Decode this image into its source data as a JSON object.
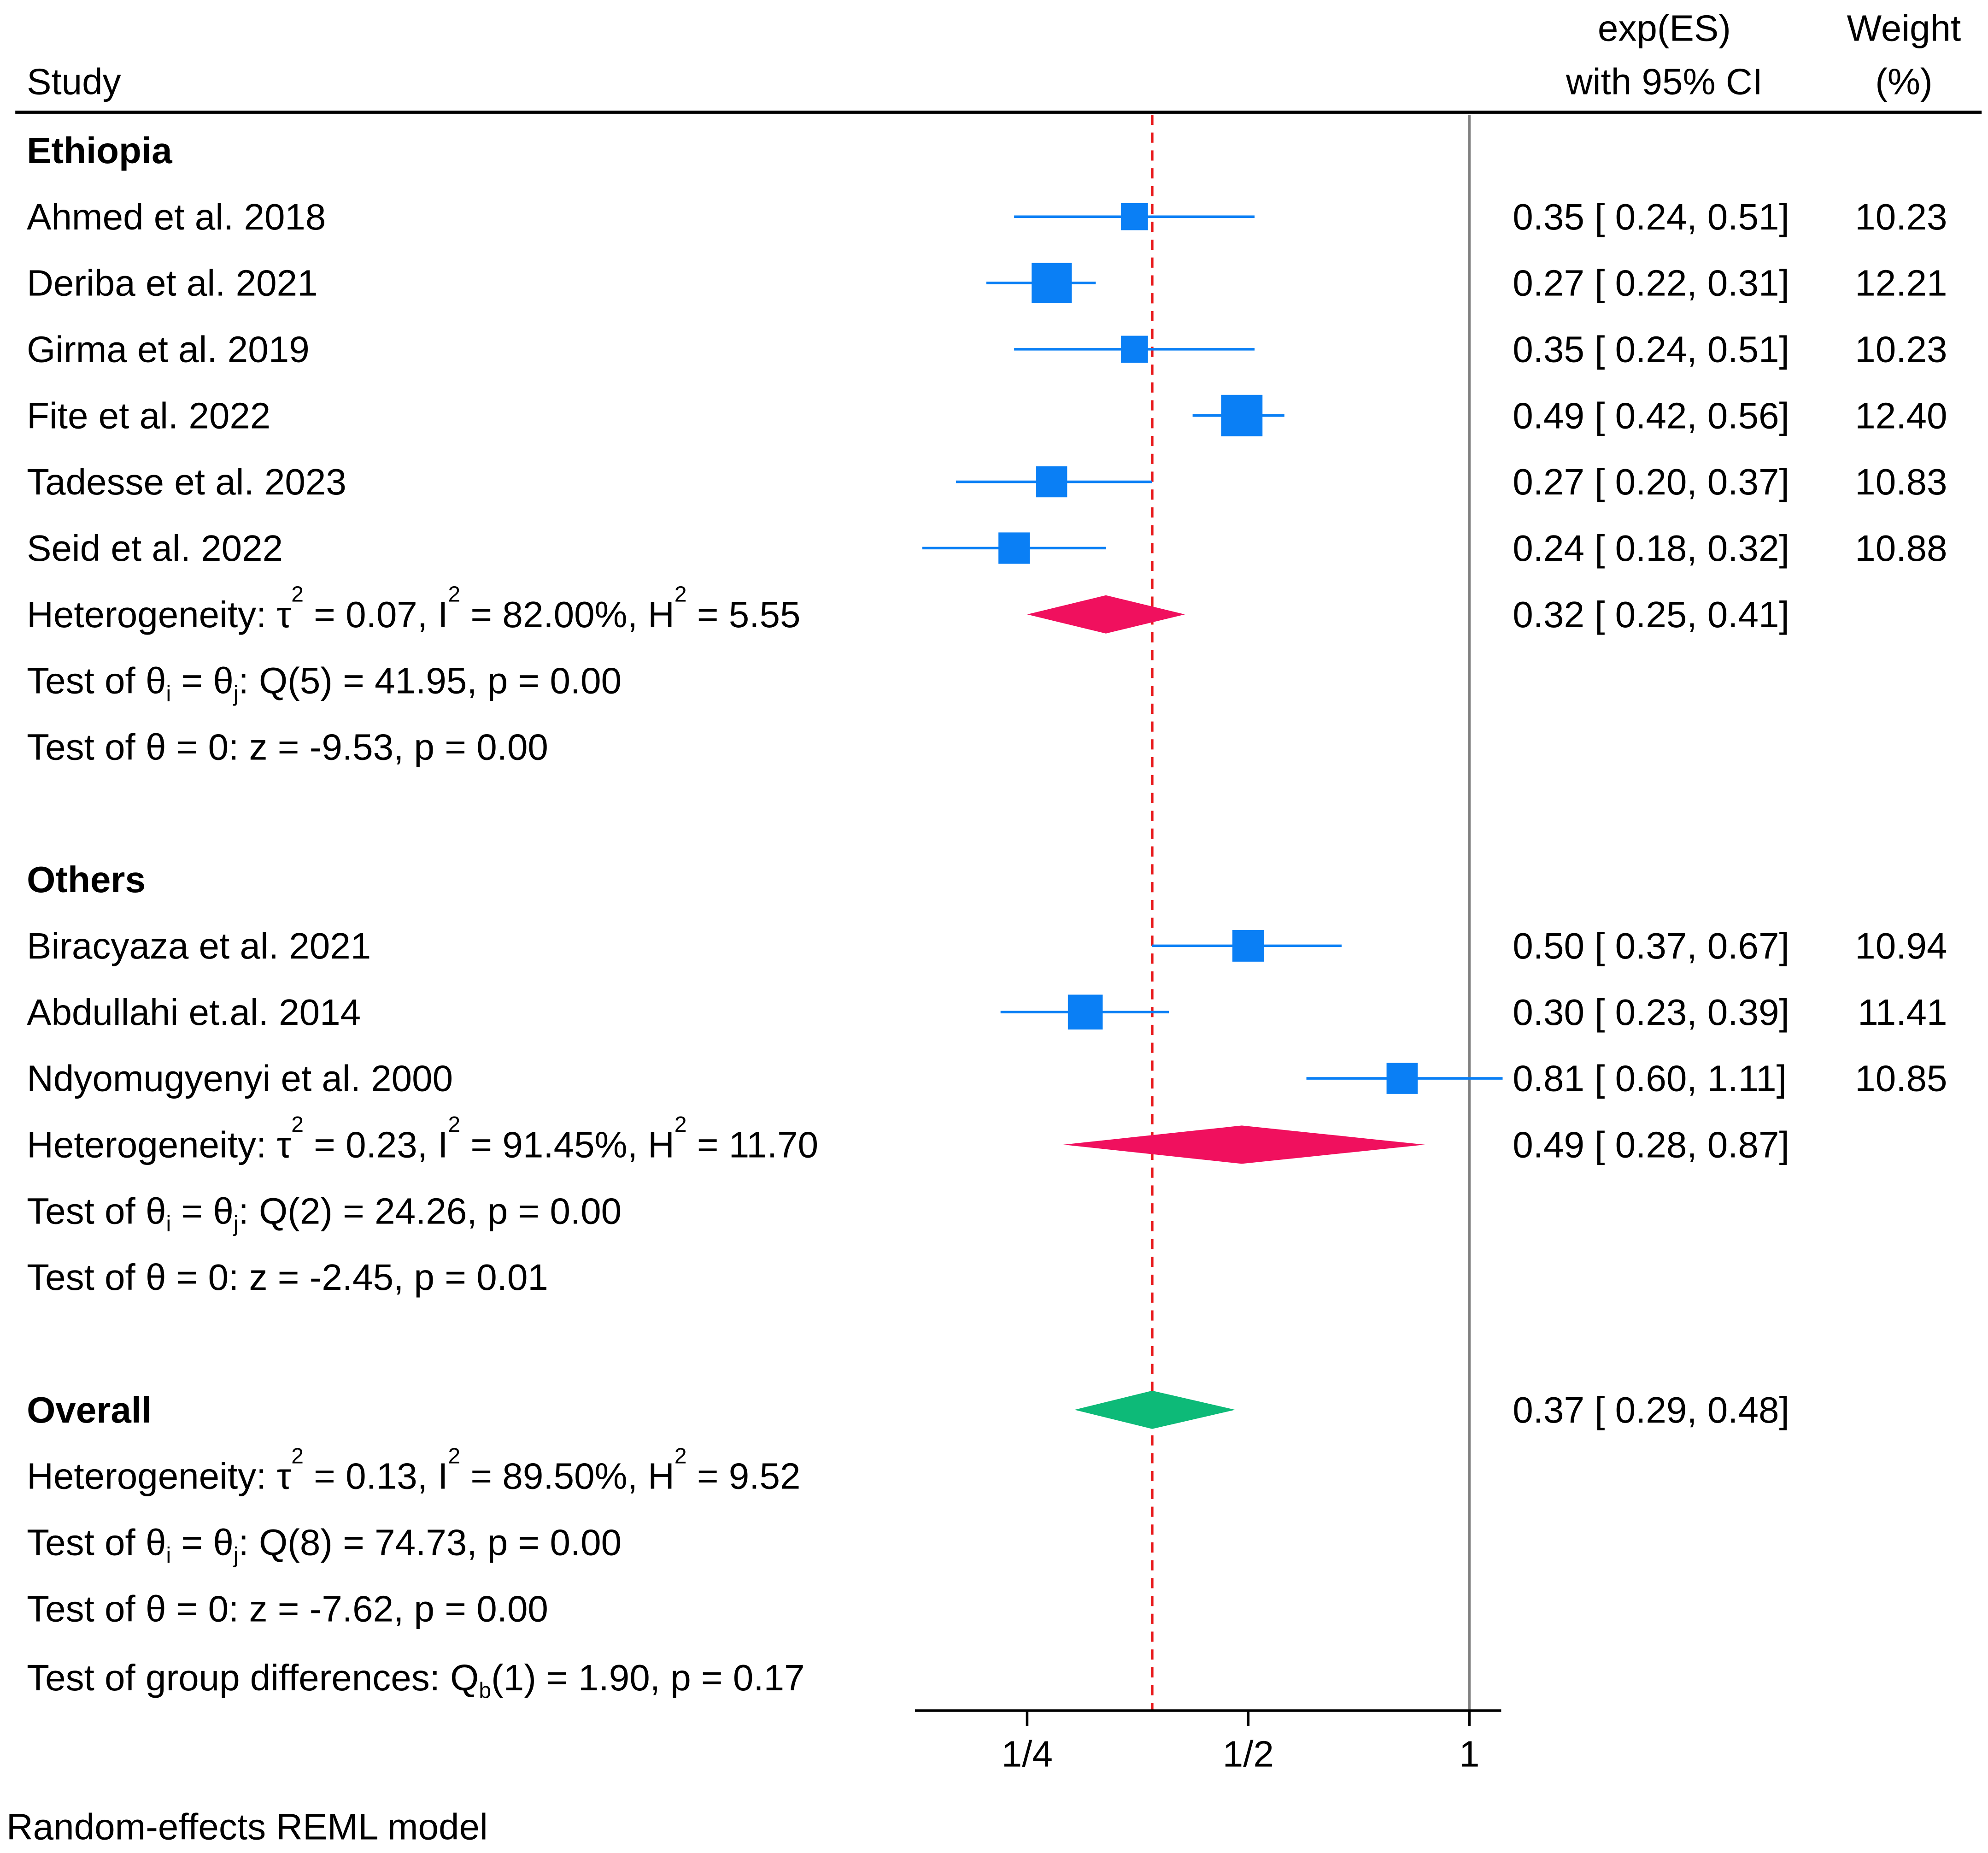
{
  "chart_data": {
    "type": "forest",
    "header": {
      "study": "Study",
      "es_line1": "exp(ES)",
      "es_line2": "with 95% CI",
      "weight_line1": "Weight",
      "weight_line2": "(%)"
    },
    "x_axis": {
      "scale": "log2",
      "ticks": [
        {
          "value": 0.25,
          "label": "1/4"
        },
        {
          "value": 0.5,
          "label": "1/2"
        },
        {
          "value": 1,
          "label": "1"
        }
      ],
      "range": [
        0.18,
        1.11
      ],
      "reference_line": 1,
      "overall_effect_line": 0.37
    },
    "colors": {
      "study_marker": "#0A7FF5",
      "subgroup_diamond": "#F0105E",
      "overall_diamond": "#0DBA78",
      "overall_line": "#E8191B"
    },
    "groups": [
      {
        "name": "Ethiopia",
        "studies": [
          {
            "study": "Ahmed et al. 2018",
            "es": 0.35,
            "lo": 0.24,
            "hi": 0.51,
            "ci_text": "0.35 [ 0.24,  0.51]",
            "weight": "10.23"
          },
          {
            "study": "Deriba et al. 2021",
            "es": 0.27,
            "lo": 0.22,
            "hi": 0.31,
            "ci_text": "0.27 [ 0.22,  0.31]",
            "weight": "12.21"
          },
          {
            "study": "Girma et al. 2019",
            "es": 0.35,
            "lo": 0.24,
            "hi": 0.51,
            "ci_text": "0.35 [ 0.24,  0.51]",
            "weight": "10.23"
          },
          {
            "study": "Fite et al. 2022",
            "es": 0.49,
            "lo": 0.42,
            "hi": 0.56,
            "ci_text": "0.49 [ 0.42,  0.56]",
            "weight": "12.40"
          },
          {
            "study": "Tadesse et al. 2023",
            "es": 0.27,
            "lo": 0.2,
            "hi": 0.37,
            "ci_text": "0.27 [ 0.20,  0.37]",
            "weight": "10.83"
          },
          {
            "study": "Seid et al. 2022",
            "es": 0.24,
            "lo": 0.18,
            "hi": 0.32,
            "ci_text": "0.24 [ 0.18,  0.32]",
            "weight": "10.88"
          }
        ],
        "summary": {
          "es": 0.32,
          "lo": 0.25,
          "hi": 0.41,
          "ci_text": "0.32 [ 0.25,  0.41]"
        },
        "heterogeneity": {
          "tau2": "0.07",
          "i2": "82.00%",
          "h2": "5.55"
        },
        "test_theta_ij": {
          "df": "5",
          "q": "41.95",
          "p": "0.00"
        },
        "test_theta_0": {
          "z": "-9.53",
          "p": "0.00"
        }
      },
      {
        "name": "Others",
        "studies": [
          {
            "study": "Biracyaza et al. 2021",
            "es": 0.5,
            "lo": 0.37,
            "hi": 0.67,
            "ci_text": "0.50 [ 0.37,  0.67]",
            "weight": "10.94"
          },
          {
            "study": "Abdullahi et.al. 2014",
            "es": 0.3,
            "lo": 0.23,
            "hi": 0.39,
            "ci_text": "0.30 [ 0.23,  0.39]",
            "weight": "11.41"
          },
          {
            "study": "Ndyomugyenyi et al. 2000",
            "es": 0.81,
            "lo": 0.6,
            "hi": 1.11,
            "ci_text": "0.81 [ 0.60,  1.11]",
            "weight": "10.85"
          }
        ],
        "summary": {
          "es": 0.49,
          "lo": 0.28,
          "hi": 0.87,
          "ci_text": "0.49 [ 0.28,  0.87]"
        },
        "heterogeneity": {
          "tau2": "0.23",
          "i2": "91.45%",
          "h2": "11.70"
        },
        "test_theta_ij": {
          "df": "2",
          "q": "24.26",
          "p": "0.00"
        },
        "test_theta_0": {
          "z": "-2.45",
          "p": "0.01"
        }
      }
    ],
    "overall": {
      "label": "Overall",
      "es": 0.37,
      "lo": 0.29,
      "hi": 0.48,
      "ci_text": "0.37 [ 0.29,  0.48]",
      "heterogeneity": {
        "tau2": "0.13",
        "i2": "89.50%",
        "h2": "9.52"
      },
      "test_theta_ij": {
        "df": "8",
        "q": "74.73",
        "p": "0.00"
      },
      "test_theta_0": {
        "z": "-7.62",
        "p": "0.00"
      }
    },
    "group_test": {
      "df": "1",
      "q": "1.90",
      "p": "0.17"
    },
    "footnote": "Random-effects REML model"
  }
}
